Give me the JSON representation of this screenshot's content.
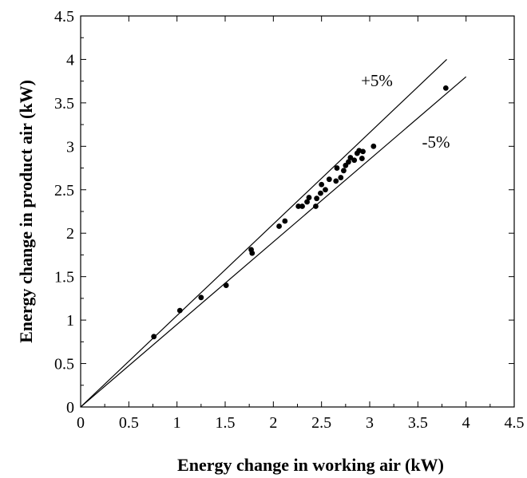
{
  "chart_data": {
    "type": "scatter",
    "xlabel": "Energy change in working air (kW)",
    "ylabel": "Energy change in product air (kW)",
    "xlim": [
      0,
      4.5
    ],
    "ylim": [
      0,
      4.5
    ],
    "xticks": [
      "0",
      "0.5",
      "1",
      "1.5",
      "2",
      "2.5",
      "3",
      "3.5",
      "4",
      "4.5"
    ],
    "yticks": [
      "0",
      "0.5",
      "1",
      "1.5",
      "2",
      "2.5",
      "3",
      "3.5",
      "4",
      "4.5"
    ],
    "grid": false,
    "series": [
      {
        "x": [
          0.76,
          1.03,
          1.25,
          1.51,
          1.77,
          1.78,
          2.06,
          2.12,
          2.26,
          2.3,
          2.35,
          2.37,
          2.44,
          2.45,
          2.49,
          2.5,
          2.54,
          2.58,
          2.65,
          2.66,
          2.7,
          2.73,
          2.75,
          2.78,
          2.8,
          2.84,
          2.87,
          2.89,
          2.92,
          2.93,
          3.04,
          3.79
        ],
        "y": [
          0.81,
          1.11,
          1.26,
          1.4,
          1.81,
          1.77,
          2.08,
          2.14,
          2.31,
          2.31,
          2.36,
          2.41,
          2.31,
          2.4,
          2.46,
          2.56,
          2.5,
          2.62,
          2.6,
          2.75,
          2.64,
          2.72,
          2.78,
          2.82,
          2.87,
          2.84,
          2.92,
          2.95,
          2.86,
          2.94,
          3.0,
          3.67
        ]
      }
    ],
    "reference_lines": [
      {
        "label": "+5%",
        "x": [
          0,
          3.8
        ],
        "y": [
          0,
          4.0
        ]
      },
      {
        "label": "-5%",
        "x": [
          0,
          4.0
        ],
        "y": [
          0,
          3.8
        ]
      }
    ]
  }
}
